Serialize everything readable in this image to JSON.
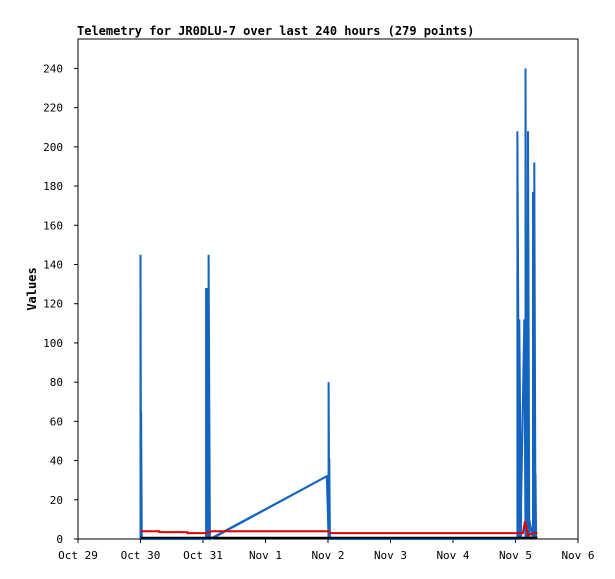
{
  "chart_data": {
    "type": "line",
    "title": "Telemetry for JR0DLU-7 over last 240 hours (279 points)",
    "ylabel": "Values",
    "xlabel": "",
    "ylim": [
      0,
      255
    ],
    "xlim": [
      0,
      8
    ],
    "x_ticks": [
      {
        "pos": 0,
        "label": "Oct 29"
      },
      {
        "pos": 1,
        "label": "Oct 30"
      },
      {
        "pos": 2,
        "label": "Oct 31"
      },
      {
        "pos": 3,
        "label": "Nov 1"
      },
      {
        "pos": 4,
        "label": "Nov 2"
      },
      {
        "pos": 5,
        "label": "Nov 3"
      },
      {
        "pos": 6,
        "label": "Nov 4"
      },
      {
        "pos": 7,
        "label": "Nov 5"
      },
      {
        "pos": 8,
        "label": "Nov 6"
      }
    ],
    "y_ticks": [
      0,
      20,
      40,
      60,
      80,
      100,
      120,
      140,
      160,
      180,
      200,
      220,
      240
    ],
    "grid": false,
    "series": [
      {
        "color": "#1565c0",
        "points": [
          [
            1.0,
            0
          ],
          [
            1.0,
            145
          ],
          [
            1.01,
            0
          ],
          [
            1.01,
            65
          ],
          [
            1.02,
            0
          ],
          [
            2.05,
            0
          ],
          [
            2.05,
            128
          ],
          [
            2.07,
            0
          ],
          [
            2.07,
            128
          ],
          [
            2.09,
            0
          ],
          [
            2.09,
            145
          ],
          [
            2.11,
            0
          ],
          [
            3.98,
            32
          ],
          [
            4.01,
            0
          ],
          [
            4.01,
            80
          ],
          [
            4.02,
            0
          ],
          [
            4.02,
            41
          ],
          [
            4.03,
            0
          ],
          [
            7.03,
            0
          ],
          [
            7.03,
            208
          ],
          [
            7.06,
            0
          ],
          [
            7.06,
            112
          ],
          [
            7.09,
            0
          ],
          [
            7.09,
            18
          ],
          [
            7.14,
            112
          ],
          [
            7.16,
            0
          ],
          [
            7.16,
            240
          ],
          [
            7.18,
            0
          ],
          [
            7.18,
            42
          ],
          [
            7.2,
            0
          ],
          [
            7.2,
            208
          ],
          [
            7.22,
            0
          ],
          [
            7.22,
            10
          ],
          [
            7.28,
            0
          ],
          [
            7.28,
            177
          ],
          [
            7.3,
            0
          ],
          [
            7.3,
            192
          ],
          [
            7.32,
            0
          ],
          [
            7.32,
            33
          ],
          [
            7.33,
            0
          ]
        ],
        "diagonal": [
          [
            2.13,
            0
          ],
          [
            3.98,
            32
          ]
        ]
      },
      {
        "color": "#e00000",
        "points": [
          [
            1.0,
            4
          ],
          [
            1.3,
            4
          ],
          [
            1.3,
            3.5
          ],
          [
            1.75,
            3.5
          ],
          [
            1.75,
            3
          ],
          [
            2.05,
            3
          ],
          [
            2.15,
            4
          ],
          [
            4.0,
            4
          ],
          [
            4.05,
            3
          ],
          [
            7.0,
            3
          ],
          [
            7.12,
            3
          ],
          [
            7.15,
            9
          ],
          [
            7.2,
            2
          ],
          [
            7.3,
            3
          ],
          [
            7.35,
            3
          ]
        ]
      },
      {
        "color": "#000000",
        "points": [
          [
            1.0,
            0.6
          ],
          [
            7.35,
            0.6
          ]
        ]
      }
    ]
  }
}
